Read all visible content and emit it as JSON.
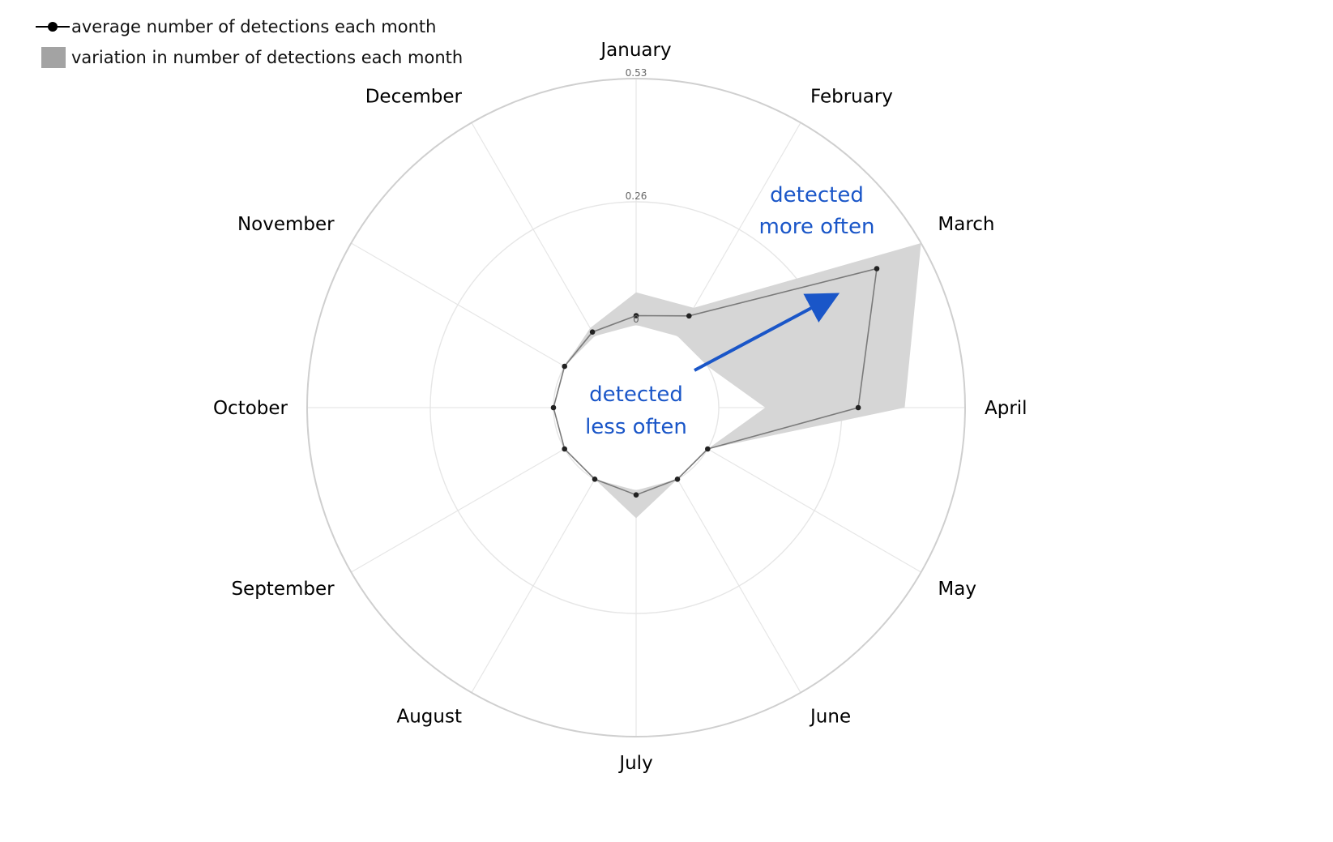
{
  "legend": {
    "mean_label": "average number of detections each month",
    "range_label": "variation in number of detections each month"
  },
  "chart_data": {
    "type": "radar",
    "categories": [
      "January",
      "February",
      "March",
      "April",
      "May",
      "June",
      "July",
      "August",
      "September",
      "October",
      "November",
      "December"
    ],
    "radial_ticks": [
      "0",
      "0.26",
      "0.53"
    ],
    "rlim": [
      0,
      0.53
    ],
    "series": [
      {
        "name": "average number of detections each month",
        "values": [
          0.02,
          0.05,
          0.42,
          0.3,
          0.0,
          0.0,
          0.01,
          0.0,
          0.0,
          0.0,
          0.0,
          0.01
        ]
      }
    ],
    "band": {
      "name": "variation in number of detections each month",
      "lower": [
        0.0,
        0.0,
        0.0,
        0.1,
        0.0,
        0.0,
        0.0,
        0.0,
        0.0,
        0.0,
        0.0,
        0.0
      ],
      "upper": [
        0.07,
        0.07,
        0.53,
        0.4,
        0.0,
        0.0,
        0.06,
        0.0,
        0.0,
        0.0,
        0.0,
        0.02
      ]
    },
    "grid": true,
    "legend_position": "top-left",
    "annotations": [
      {
        "id": "more",
        "lines": [
          "detected",
          "more often"
        ],
        "color": "#1a56c8"
      },
      {
        "id": "less",
        "lines": [
          "detected",
          "less often"
        ],
        "color": "#1a56c8"
      }
    ],
    "colors": {
      "band": "#d6d6d6",
      "line": "#7a7a7a",
      "points": "#222222",
      "grid": "#e6e6e6",
      "outer_ring": "#cfcfcf",
      "annotation": "#1a56c8"
    }
  }
}
